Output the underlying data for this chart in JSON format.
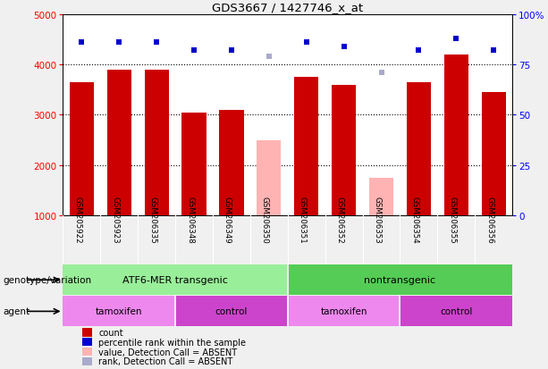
{
  "title": "GDS3667 / 1427746_x_at",
  "samples": [
    "GSM205922",
    "GSM205923",
    "GSM206335",
    "GSM206348",
    "GSM206349",
    "GSM206350",
    "GSM206351",
    "GSM206352",
    "GSM206353",
    "GSM206354",
    "GSM206355",
    "GSM206356"
  ],
  "count_values": [
    3650,
    3900,
    3900,
    3050,
    3100,
    null,
    3750,
    3600,
    null,
    3650,
    4200,
    3450
  ],
  "count_absent": [
    null,
    null,
    null,
    null,
    null,
    2500,
    null,
    null,
    1750,
    null,
    null,
    null
  ],
  "percentile_values": [
    86,
    86,
    86,
    82,
    82,
    null,
    86,
    84,
    null,
    82,
    88,
    82
  ],
  "percentile_absent": [
    null,
    null,
    null,
    null,
    null,
    79,
    null,
    null,
    71,
    null,
    null,
    null
  ],
  "ylim_left": [
    1000,
    5000
  ],
  "ylim_right": [
    0,
    100
  ],
  "yticks_left": [
    1000,
    2000,
    3000,
    4000,
    5000
  ],
  "yticks_right": [
    0,
    25,
    50,
    75,
    100
  ],
  "ytick_labels_right": [
    "0",
    "25",
    "50",
    "75",
    "100%"
  ],
  "bar_color_present": "#cc0000",
  "bar_color_absent": "#ffb3b3",
  "dot_color_present": "#0000cc",
  "dot_color_absent": "#aaaacc",
  "bg_color": "#d8d8d8",
  "plot_bg": "#ffffff",
  "group1_label": "ATF6-MER transgenic",
  "group2_label": "nontransgenic",
  "group1_color": "#99ee99",
  "group2_color": "#55cc55",
  "subgroup_tamoxifen_color": "#ee88ee",
  "subgroup_control_color": "#cc44cc",
  "genotype_label": "genotype/variation",
  "agent_label": "agent",
  "absent_indices": [
    5,
    8
  ],
  "legend_labels": [
    "count",
    "percentile rank within the sample",
    "value, Detection Call = ABSENT",
    "rank, Detection Call = ABSENT"
  ],
  "legend_colors": [
    "#cc0000",
    "#0000cc",
    "#ffb3b3",
    "#aaaacc"
  ]
}
